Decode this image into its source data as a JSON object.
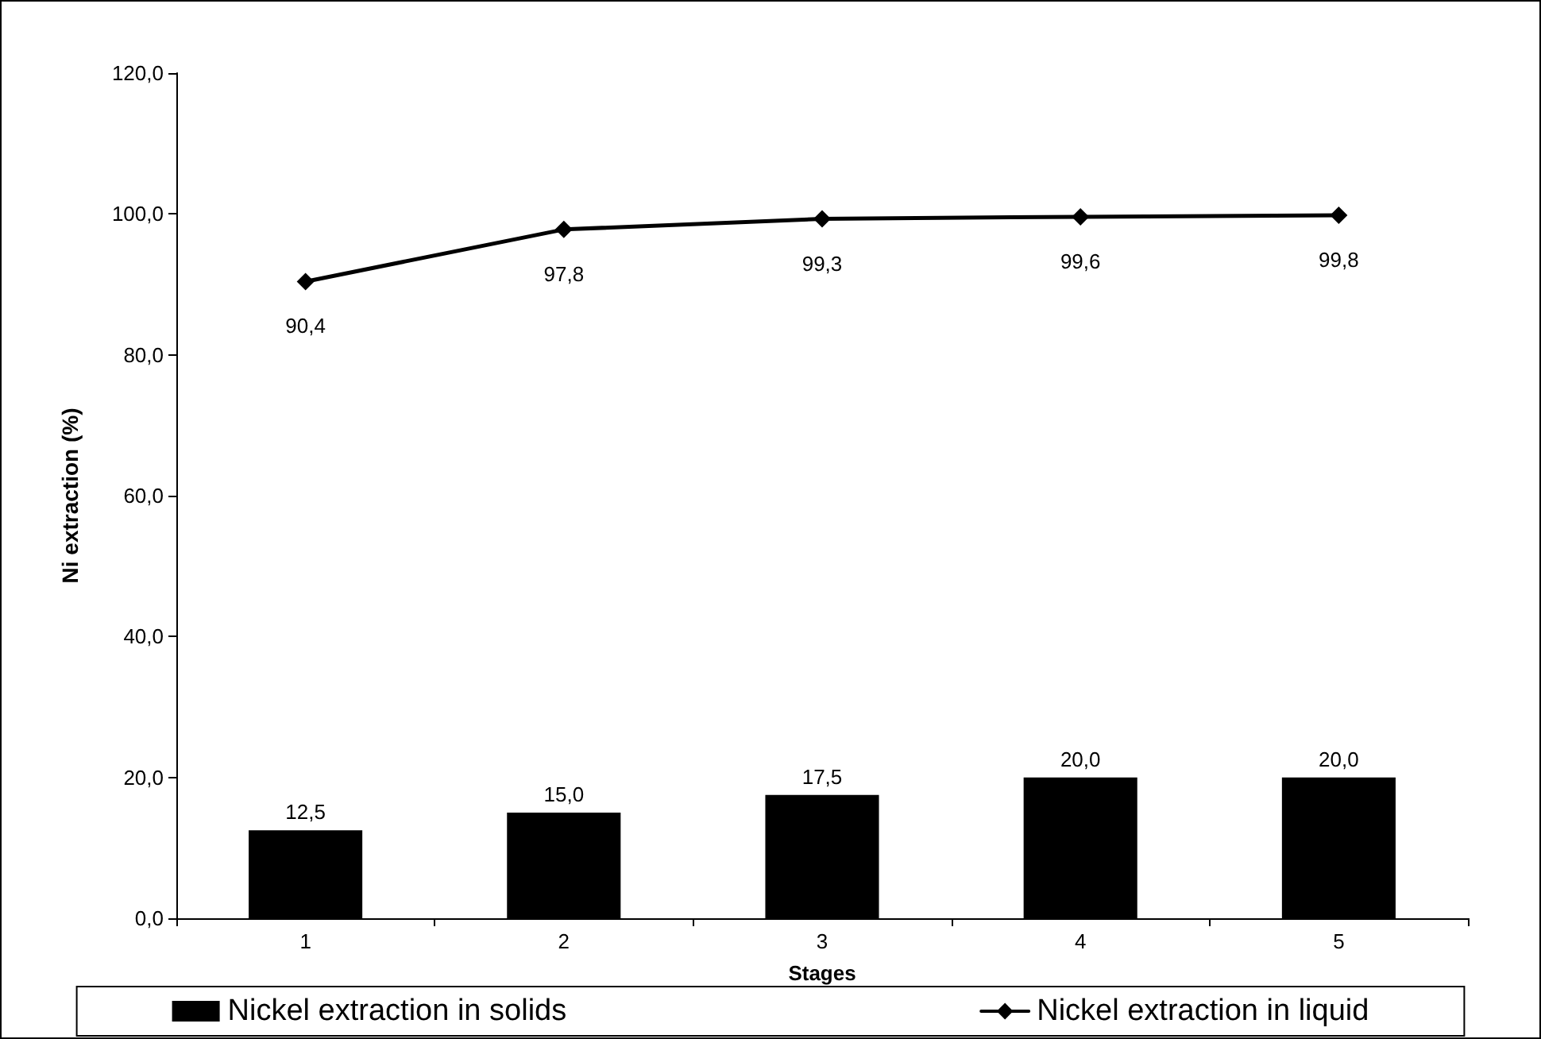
{
  "chart_data": {
    "type": "bar",
    "xlabel": "Stages",
    "ylabel": "Ni extraction (%)",
    "categories": [
      "1",
      "2",
      "3",
      "4",
      "5"
    ],
    "series": [
      {
        "name": "Nickel extraction in solids",
        "color": "#000000",
        "values": [
          12.5,
          15.0,
          17.5,
          20.0,
          20.0
        ],
        "value_labels": [
          "12,5",
          "15,0",
          "17,5",
          "20,0",
          "20,0"
        ]
      },
      {
        "name": "Nickel extraction in liquid",
        "type": "line",
        "color": "#000000",
        "marker": "diamond",
        "values": [
          90.4,
          97.8,
          99.3,
          99.6,
          99.8
        ],
        "value_labels": [
          "90,4",
          "97,8",
          "99,3",
          "99,6",
          "99,8"
        ]
      }
    ],
    "ylim": [
      0,
      120
    ],
    "yticks": [
      {
        "value": 0,
        "label": "0,0"
      },
      {
        "value": 20,
        "label": "20,0"
      },
      {
        "value": 40,
        "label": "40,0"
      },
      {
        "value": 60,
        "label": "60,0"
      },
      {
        "value": 80,
        "label": "80,0"
      },
      {
        "value": 100,
        "label": "100,0"
      },
      {
        "value": 120,
        "label": "120,0"
      }
    ],
    "grid": false,
    "legend": "bottom"
  }
}
